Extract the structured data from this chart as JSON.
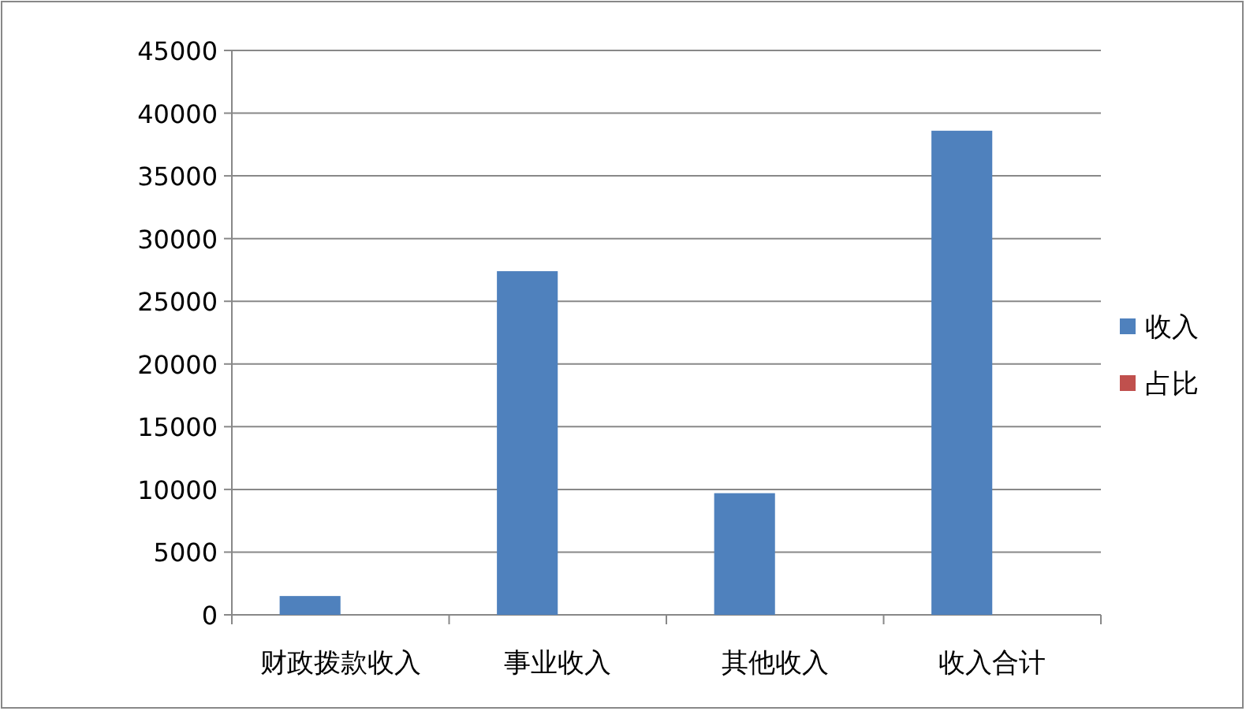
{
  "chart_data": {
    "type": "bar",
    "categories": [
      "财政拨款收入",
      "事业收入",
      "其他收入",
      "收入合计"
    ],
    "series": [
      {
        "name": "收入",
        "color": "#4f81bd",
        "values": [
          1500,
          27400,
          9700,
          38600
        ]
      },
      {
        "name": "占比",
        "color": "#c0504d",
        "values": [
          0,
          0,
          0,
          0
        ]
      }
    ],
    "ylim": [
      0,
      45000
    ],
    "yticks": [
      0,
      5000,
      10000,
      15000,
      20000,
      25000,
      30000,
      35000,
      40000,
      45000
    ],
    "grid": "y",
    "legend": "right"
  }
}
